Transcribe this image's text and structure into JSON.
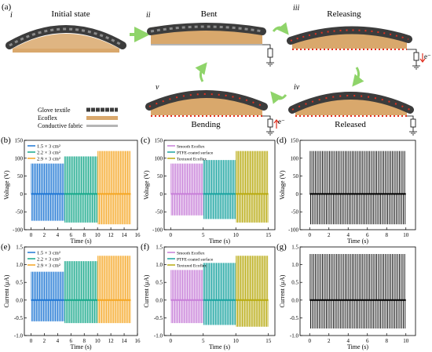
{
  "figure": {
    "label_a": "(a)",
    "stages": [
      {
        "roman": "i",
        "title": "Initial state"
      },
      {
        "roman": "ii",
        "title": "Bent"
      },
      {
        "roman": "iii",
        "title": "Releasing"
      },
      {
        "roman": "iv",
        "title": "Released"
      },
      {
        "roman": "v",
        "title": "Bending"
      }
    ],
    "electron_label": "e⁻",
    "materials_legend": [
      {
        "name": "Glove textile",
        "color": "#3a3a3a"
      },
      {
        "name": "Ecoflex",
        "color": "#e8c15a"
      },
      {
        "name": "Conductive fabric",
        "color": "#b5b5b5"
      }
    ]
  },
  "colors": {
    "ecoflex": "#d9a86c",
    "textile_dark": "#3c3c3c",
    "textile_light": "#8a8a8a",
    "arrow_green": "#8fd46a",
    "charge_red": "#e03020",
    "blue": "#1f77d4",
    "green": "#17a88a",
    "orange": "#f5a623",
    "purple": "#c77fd8",
    "teal": "#1aa3a0",
    "olive": "#b8aa10",
    "black": "#000000"
  },
  "chart_data": [
    {
      "panel": "(b)",
      "type": "line",
      "xlabel": "Time (s)",
      "ylabel": "Voltage (V)",
      "xlim": [
        -1,
        16
      ],
      "ylim": [
        -100,
        150
      ],
      "xticks": [
        0,
        2,
        4,
        6,
        8,
        10,
        12,
        14,
        16
      ],
      "yticks": [
        -100,
        -50,
        0,
        50,
        100,
        150
      ],
      "legend": [
        "1.5 × 3 cm²",
        "2.2 × 3 cm²",
        "2.9 × 3 cm²"
      ],
      "series": [
        {
          "name": "1.5 × 3 cm²",
          "t_start": 0,
          "t_end": 5,
          "max": 85,
          "min": -75,
          "color": "blue"
        },
        {
          "name": "2.2 × 3 cm²",
          "t_start": 5,
          "t_end": 10,
          "max": 105,
          "min": -80,
          "color": "green"
        },
        {
          "name": "2.9 × 3 cm²",
          "t_start": 10,
          "t_end": 15,
          "max": 120,
          "min": -85,
          "color": "orange"
        }
      ]
    },
    {
      "panel": "(c)",
      "type": "line",
      "xlabel": "Time (s)",
      "ylabel": "Voltage (V)",
      "xlim": [
        -1,
        16
      ],
      "ylim": [
        -100,
        150
      ],
      "xticks": [
        0,
        5,
        10,
        15
      ],
      "yticks": [
        -100,
        -50,
        0,
        50,
        100,
        150
      ],
      "legend": [
        "Smooth Ecoflex",
        "PTFE-coated surface",
        "Textured Ecoflex"
      ],
      "series": [
        {
          "name": "Smooth Ecoflex",
          "t_start": 0,
          "t_end": 5,
          "max": 85,
          "min": -60,
          "color": "purple"
        },
        {
          "name": "PTFE-coated surface",
          "t_start": 5,
          "t_end": 10,
          "max": 95,
          "min": -70,
          "color": "teal"
        },
        {
          "name": "Textured Ecoflex",
          "t_start": 10,
          "t_end": 15,
          "max": 120,
          "min": -80,
          "color": "olive"
        }
      ]
    },
    {
      "panel": "(d)",
      "type": "line",
      "xlabel": "Time (s)",
      "ylabel": "Voltage (V)",
      "xlim": [
        -1,
        11
      ],
      "ylim": [
        -100,
        150
      ],
      "xticks": [
        0,
        2,
        4,
        6,
        8,
        10
      ],
      "yticks": [
        -100,
        -50,
        0,
        50,
        100,
        150
      ],
      "series": [
        {
          "t_start": 0,
          "t_end": 10,
          "max": 120,
          "min": -85,
          "color": "black"
        }
      ]
    },
    {
      "panel": "(e)",
      "type": "line",
      "xlabel": "Time (s)",
      "ylabel": "Current (μA)",
      "xlim": [
        -1,
        16
      ],
      "ylim": [
        -1.0,
        1.5
      ],
      "xticks": [
        0,
        2,
        4,
        6,
        8,
        10,
        12,
        14,
        16
      ],
      "yticks": [
        -1.0,
        -0.5,
        0.0,
        0.5,
        1.0,
        1.5
      ],
      "legend": [
        "1.5 × 3 cm²",
        "2.2 × 3 cm²",
        "2.9 × 3 cm²"
      ],
      "series": [
        {
          "name": "1.5 × 3 cm²",
          "t_start": 0,
          "t_end": 5,
          "max": 0.8,
          "min": -0.6,
          "color": "blue"
        },
        {
          "name": "2.2 × 3 cm²",
          "t_start": 5,
          "t_end": 10,
          "max": 1.1,
          "min": -0.65,
          "color": "green"
        },
        {
          "name": "2.9 × 3 cm²",
          "t_start": 10,
          "t_end": 15,
          "max": 1.25,
          "min": -0.65,
          "color": "orange"
        }
      ]
    },
    {
      "panel": "(f)",
      "type": "line",
      "xlabel": "Time (s)",
      "ylabel": "Current (μA)",
      "xlim": [
        -1,
        16
      ],
      "ylim": [
        -1.0,
        1.5
      ],
      "xticks": [
        0,
        5,
        10,
        15
      ],
      "yticks": [
        -1.0,
        -0.5,
        0.0,
        0.5,
        1.0,
        1.5
      ],
      "legend": [
        "Smooth Ecoflex",
        "PTFE-coated surface",
        "Textured Ecoflex"
      ],
      "series": [
        {
          "name": "Smooth Ecoflex",
          "t_start": 0,
          "t_end": 5,
          "max": 0.85,
          "min": -0.65,
          "color": "purple"
        },
        {
          "name": "PTFE-coated surface",
          "t_start": 5,
          "t_end": 10,
          "max": 1.05,
          "min": -0.7,
          "color": "teal"
        },
        {
          "name": "Textured Ecoflex",
          "t_start": 10,
          "t_end": 15,
          "max": 1.25,
          "min": -0.75,
          "color": "olive"
        }
      ]
    },
    {
      "panel": "(g)",
      "type": "line",
      "xlabel": "Time (s)",
      "ylabel": "Current (μA)",
      "xlim": [
        -1,
        11
      ],
      "ylim": [
        -1.0,
        1.5
      ],
      "xticks": [
        0,
        2,
        4,
        6,
        8,
        10
      ],
      "yticks": [
        -1.0,
        -0.5,
        0.0,
        0.5,
        1.0,
        1.5
      ],
      "series": [
        {
          "t_start": 0,
          "t_end": 10,
          "max": 1.3,
          "min": -0.8,
          "color": "black"
        }
      ]
    }
  ]
}
